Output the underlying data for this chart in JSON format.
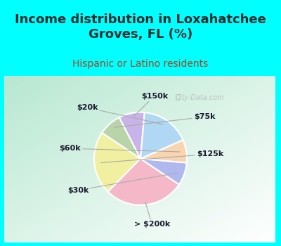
{
  "title": "Income distribution in Loxahatchee\nGroves, FL (%)",
  "subtitle": "Hispanic or Latino residents",
  "labels": [
    "$150k",
    "$75k",
    "$125k",
    "> $200k",
    "$30k",
    "$60k",
    "$20k"
  ],
  "values": [
    9,
    8,
    22,
    28,
    8,
    8,
    17
  ],
  "colors": [
    "#c8b4e8",
    "#b8d4a8",
    "#f0f0a0",
    "#f4b8c8",
    "#b0b8f0",
    "#f8d4b0",
    "#b0d8f4"
  ],
  "bg_cyan": "#00ffff",
  "title_color": "#2a2a2a",
  "subtitle_color": "#aa4422",
  "watermark": "City-Data.com",
  "label_color": "#1a1a2e",
  "startangle": 85,
  "title_fontsize": 13,
  "subtitle_fontsize": 10,
  "label_fontsize": 8
}
